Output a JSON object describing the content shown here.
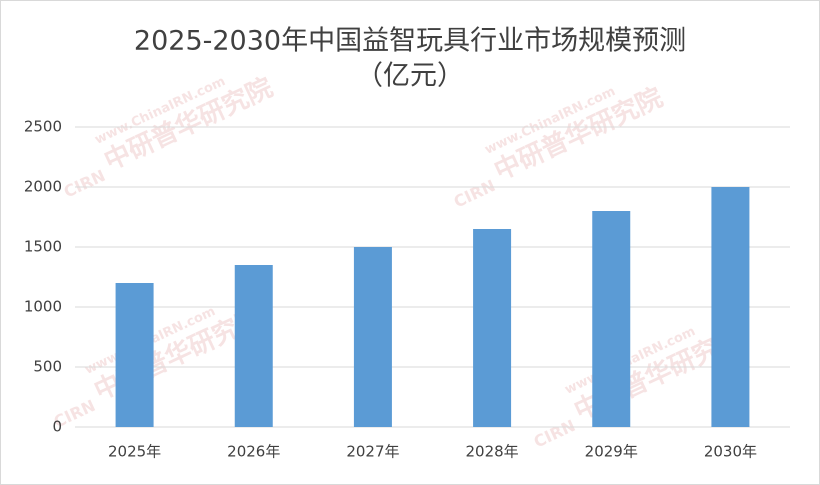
{
  "chart_data": {
    "type": "bar",
    "title": "2025-2030年中国益智玩具行业市场规模预测",
    "subtitle": "（亿元）",
    "categories": [
      "2025年",
      "2026年",
      "2027年",
      "2028年",
      "2029年",
      "2030年"
    ],
    "values": [
      1200,
      1350,
      1500,
      1650,
      1800,
      2000
    ],
    "color": "#5b9bd5",
    "ylim": [
      0,
      2500
    ],
    "yticks": [
      0,
      500,
      1000,
      1500,
      2000,
      2500
    ],
    "grid": true,
    "watermark": {
      "site": "www.ChinaIRN.com",
      "name": "中研普华研究院",
      "logo": "CIRN"
    }
  }
}
